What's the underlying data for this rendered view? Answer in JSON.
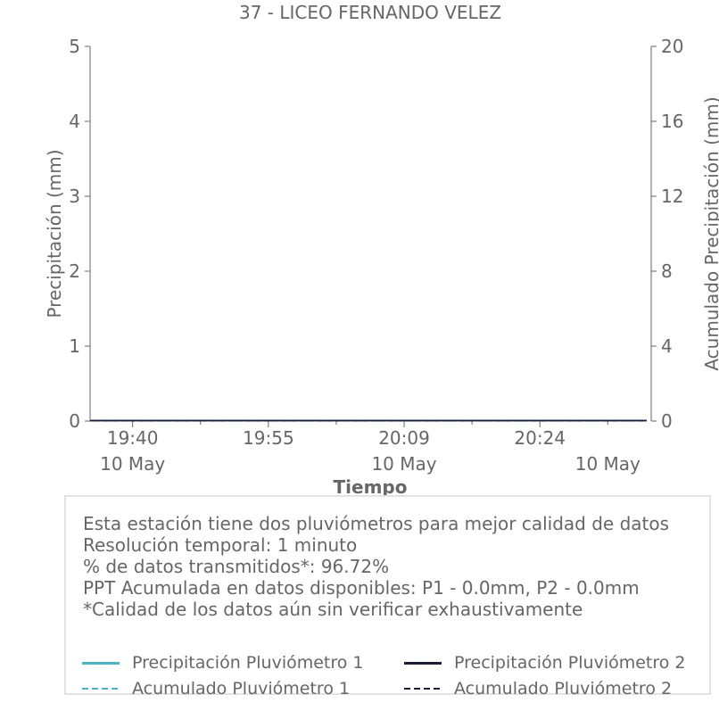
{
  "chart_data": {
    "type": "line",
    "title": "37 - LICEO FERNANDO VELEZ",
    "xlabel": "Tiempo",
    "ylabel_left": "Precipitación (mm)",
    "ylabel_right": "Acumulado Precipitación (mm)",
    "ylim_left": [
      0,
      5
    ],
    "ylim_right": [
      0,
      20
    ],
    "yticks_left": [
      "0",
      "1",
      "2",
      "3",
      "4",
      "5"
    ],
    "yticks_right": [
      "0",
      "4",
      "8",
      "12",
      "16",
      "20"
    ],
    "x_range_minutes": [
      0,
      62
    ],
    "xticks": [
      {
        "minute": 4.7,
        "time": "19:40",
        "date": "10 May"
      },
      {
        "minute": 19.7,
        "time": "19:55",
        "date": ""
      },
      {
        "minute": 34.7,
        "time": "20:09",
        "date": "10 May"
      },
      {
        "minute": 49.7,
        "time": "20:24",
        "date": ""
      },
      {
        "minute": 57.2,
        "time": "",
        "date": "10 May"
      }
    ],
    "minor_ticks_minutes": [
      12.2,
      27.2,
      42.2,
      57.2
    ],
    "grid": false,
    "series": [
      {
        "name": "Precipitación Pluviómetro 1",
        "axis": "left",
        "style": "solid",
        "color": "#4bb3c2",
        "x_start": 0,
        "x_end": 61.5,
        "value": 0
      },
      {
        "name": "Precipitación Pluviómetro 2",
        "axis": "left",
        "style": "solid",
        "color": "#1b1b3a",
        "x_start": 0,
        "x_end": 61.5,
        "value": 0
      },
      {
        "name": "Acumulado Pluviómetro 1",
        "axis": "right",
        "style": "dashed",
        "color": "#4bb3c2",
        "x_start": 0,
        "x_end": 61.5,
        "value": 0
      },
      {
        "name": "Acumulado Pluviómetro 2",
        "axis": "right",
        "style": "dashed",
        "color": "#1b1b3a",
        "x_start": 0,
        "x_end": 61.5,
        "value": 0
      }
    ]
  },
  "info": {
    "lines": [
      "Esta estación tiene dos pluviómetros para mejor calidad de datos",
      "Resolución temporal: 1 minuto",
      "% de datos transmitidos*: 96.72%",
      "PPT Acumulada en datos disponibles: P1 - 0.0mm, P2 - 0.0mm",
      "*Calidad de los datos aún sin verificar exhaustivamente"
    ]
  },
  "legend": {
    "items": [
      {
        "label": "Precipitación Pluviómetro 1",
        "color": "#4bb3c2",
        "style": "solid"
      },
      {
        "label": "Precipitación Pluviómetro 2",
        "color": "#1b1b3a",
        "style": "solid"
      },
      {
        "label": "Acumulado Pluviómetro 1",
        "color": "#4bb3c2",
        "style": "dashed"
      },
      {
        "label": "Acumulado Pluviómetro 2",
        "color": "#1b1b3a",
        "style": "dashed"
      }
    ]
  }
}
